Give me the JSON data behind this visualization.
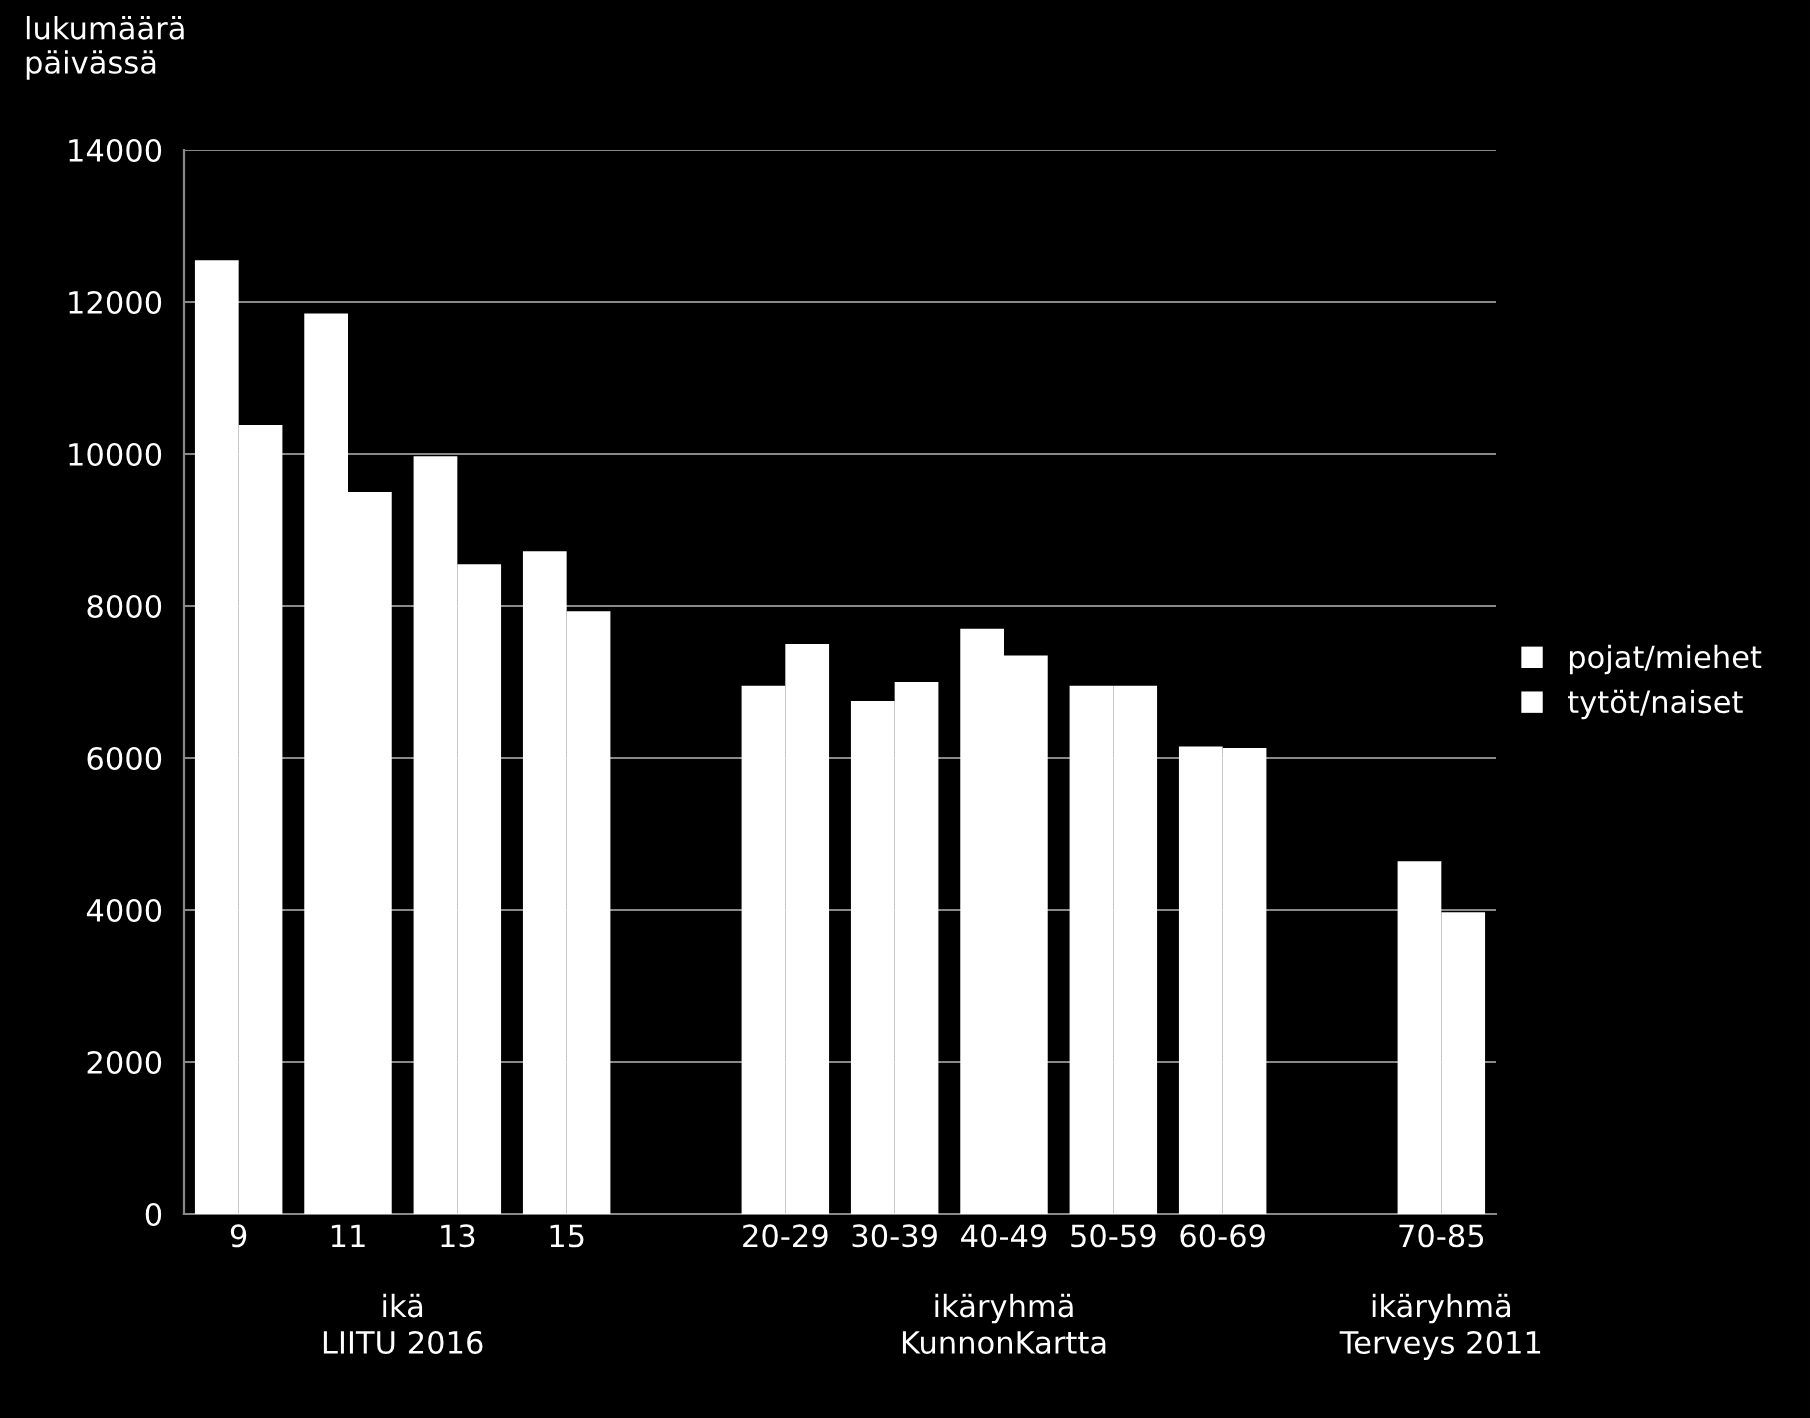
{
  "chart_data": {
    "type": "bar",
    "ylabel": "lukumäärä\npäivässä",
    "categories": [
      "9",
      "11",
      "13",
      "15",
      null,
      "20-29",
      "30-39",
      "40-49",
      "50-59",
      "60-69",
      null,
      "70-85"
    ],
    "series": [
      {
        "name": "pojat/miehet",
        "color": "#ffffff",
        "values": [
          12550,
          11850,
          9970,
          8720,
          null,
          6950,
          6750,
          7700,
          6950,
          6150,
          null,
          4640
        ]
      },
      {
        "name": "tytöt/naiset",
        "color": "#ffffff",
        "values": [
          10380,
          9500,
          8550,
          7930,
          null,
          7500,
          7000,
          7350,
          6950,
          6130,
          null,
          3970
        ]
      }
    ],
    "ylim": [
      0,
      14000
    ],
    "yticks": [
      0,
      2000,
      4000,
      6000,
      8000,
      10000,
      12000,
      14000
    ],
    "grid": "y",
    "legend": "right",
    "annotations": [
      "ikä\nLIITU 2016",
      "ikäryhmä\nKunnonKartta",
      "ikäryhmä\nTerveys 2011"
    ]
  }
}
